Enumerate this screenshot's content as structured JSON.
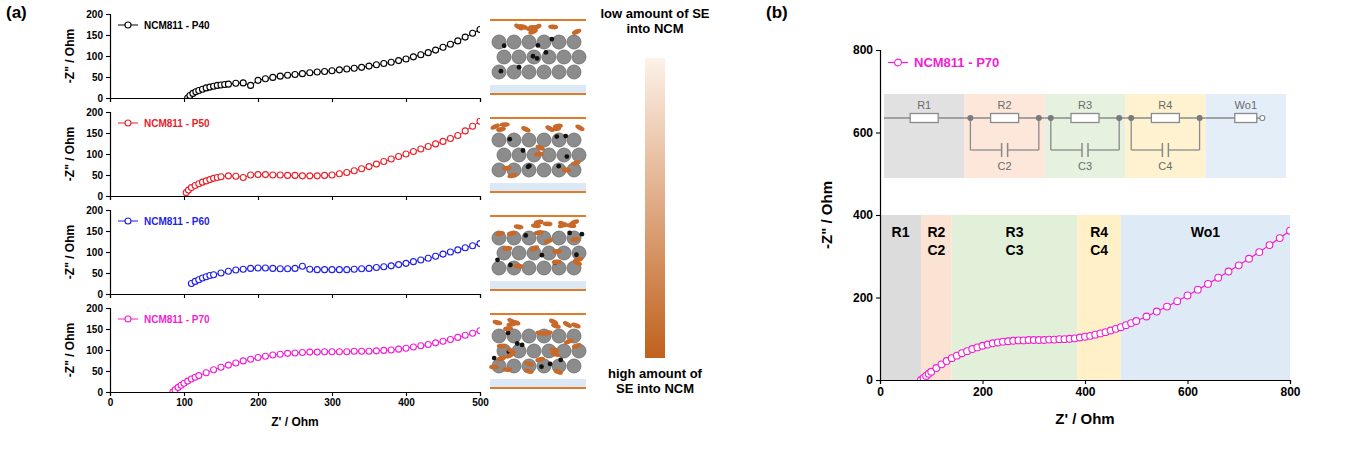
{
  "panel_labels": [
    "(a)",
    "(b)"
  ],
  "gradient_labels": {
    "top": "low amount of SE into NCM",
    "bottom": "high amount of SE into NCM"
  },
  "chart_data": [
    {
      "type": "line",
      "x": [
        105,
        108,
        112,
        116,
        120,
        125,
        130,
        135,
        140,
        145,
        150,
        155,
        160,
        170,
        180,
        190,
        200,
        210,
        220,
        230,
        240,
        250,
        260,
        270,
        280,
        290,
        300,
        310,
        320,
        330,
        340,
        350,
        360,
        370,
        380,
        390,
        400,
        410,
        420,
        430,
        440,
        450,
        460,
        470,
        480,
        490,
        500
      ],
      "series": [
        {
          "name": "NCM811 - P40",
          "color": "#000000",
          "marker": "circle",
          "line_style": "solid",
          "values": [
            0,
            6,
            11,
            15,
            18,
            21,
            24,
            26,
            28,
            30,
            31,
            32,
            33,
            35,
            36,
            30,
            42,
            46,
            49,
            52,
            54,
            56,
            58,
            60,
            62,
            63,
            65,
            67,
            69,
            71,
            73,
            76,
            79,
            82,
            85,
            89,
            93,
            98,
            103,
            108,
            114,
            121,
            128,
            136,
            145,
            154,
            163
          ]
        }
      ],
      "xlim": [
        0,
        500
      ],
      "ylim": [
        0,
        200
      ],
      "xticks": [
        0,
        100,
        200,
        300,
        400,
        500
      ],
      "yticks": [
        0,
        50,
        100,
        150,
        200
      ],
      "y_label": "-Z\" / Ohm",
      "tick_labels": "y",
      "legend": "upper left"
    },
    {
      "type": "line",
      "x": [
        103,
        106,
        110,
        115,
        120,
        125,
        130,
        135,
        140,
        145,
        150,
        160,
        170,
        180,
        190,
        200,
        210,
        220,
        230,
        240,
        250,
        260,
        270,
        280,
        290,
        300,
        310,
        320,
        330,
        340,
        350,
        360,
        370,
        380,
        390,
        400,
        410,
        420,
        430,
        440,
        450,
        460,
        470,
        480,
        490,
        500
      ],
      "series": [
        {
          "name": "NCM811 - P50",
          "color": "#e8202a",
          "marker": "circle",
          "line_style": "solid",
          "values": [
            8,
            14,
            20,
            25,
            29,
            33,
            36,
            39,
            42,
            44,
            46,
            48,
            47,
            44,
            50,
            51,
            51,
            50,
            50,
            49,
            49,
            48,
            48,
            48,
            49,
            50,
            53,
            56,
            60,
            65,
            70,
            76,
            82,
            88,
            94,
            100,
            106,
            112,
            118,
            124,
            130,
            137,
            144,
            155,
            166,
            178
          ]
        }
      ],
      "xlim": [
        0,
        500
      ],
      "ylim": [
        0,
        200
      ],
      "xticks": [
        0,
        100,
        200,
        300,
        400,
        500
      ],
      "yticks": [
        0,
        50,
        100,
        150,
        200
      ],
      "y_label": "-Z\" / Ohm",
      "tick_labels": "y",
      "legend": "upper left"
    },
    {
      "type": "line",
      "x": [
        110,
        115,
        120,
        125,
        130,
        135,
        140,
        150,
        160,
        170,
        180,
        190,
        200,
        210,
        220,
        230,
        240,
        250,
        260,
        270,
        280,
        290,
        300,
        310,
        320,
        330,
        340,
        350,
        360,
        370,
        380,
        390,
        400,
        410,
        420,
        430,
        440,
        450,
        460,
        470,
        480,
        490,
        500
      ],
      "series": [
        {
          "name": "NCM811 - P60",
          "color": "#1f1fe6",
          "marker": "circle",
          "line_style": "solid",
          "values": [
            25,
            30,
            34,
            38,
            41,
            44,
            46,
            50,
            54,
            57,
            59,
            61,
            62,
            62,
            61,
            60,
            60,
            61,
            66,
            59,
            58,
            58,
            58,
            58,
            58,
            59,
            60,
            61,
            63,
            65,
            67,
            70,
            73,
            77,
            81,
            85,
            90,
            95,
            100,
            105,
            110,
            115,
            120
          ]
        }
      ],
      "xlim": [
        0,
        500
      ],
      "ylim": [
        0,
        200
      ],
      "xticks": [
        0,
        100,
        200,
        300,
        400,
        500
      ],
      "yticks": [
        0,
        50,
        100,
        150,
        200
      ],
      "y_label": "-Z\" / Ohm",
      "tick_labels": "y",
      "legend": "upper left"
    },
    {
      "type": "line",
      "x": [
        85,
        88,
        92,
        96,
        100,
        105,
        110,
        115,
        120,
        130,
        140,
        150,
        160,
        170,
        180,
        190,
        200,
        210,
        220,
        230,
        240,
        250,
        260,
        270,
        280,
        290,
        300,
        310,
        320,
        330,
        340,
        350,
        360,
        370,
        380,
        390,
        400,
        410,
        420,
        430,
        440,
        450,
        460,
        470,
        480,
        490,
        500
      ],
      "series": [
        {
          "name": "NCM811 - P70",
          "color": "#f01ed2",
          "marker": "circle",
          "line_style": "solid",
          "values": [
            0,
            5,
            11,
            16,
            21,
            26,
            31,
            35,
            39,
            46,
            53,
            59,
            64,
            69,
            74,
            78,
            82,
            85,
            88,
            90,
            92,
            93,
            94,
            95,
            95,
            96,
            96,
            96,
            96,
            97,
            97,
            97,
            98,
            99,
            100,
            102,
            104,
            107,
            110,
            113,
            117,
            121,
            125,
            130,
            135,
            140,
            146
          ]
        }
      ],
      "xlim": [
        0,
        500
      ],
      "ylim": [
        0,
        200
      ],
      "xticks": [
        0,
        100,
        200,
        300,
        400,
        500
      ],
      "yticks": [
        0,
        50,
        100,
        150,
        200
      ],
      "x_label": "Z' / Ohm",
      "y_label": "-Z\" / Ohm",
      "legend": "upper left"
    },
    {
      "type": "line",
      "x": [
        80,
        85,
        90,
        95,
        100,
        110,
        120,
        130,
        140,
        150,
        160,
        170,
        180,
        190,
        200,
        210,
        220,
        230,
        240,
        250,
        260,
        270,
        280,
        290,
        300,
        310,
        320,
        330,
        340,
        350,
        360,
        370,
        380,
        390,
        400,
        410,
        420,
        430,
        440,
        450,
        460,
        470,
        480,
        490,
        500,
        520,
        540,
        560,
        580,
        600,
        620,
        640,
        660,
        680,
        700,
        720,
        740,
        760,
        780,
        800
      ],
      "series": [
        {
          "name": "NCM811 - P70",
          "color": "#f01ed2",
          "marker": "circle",
          "line_style": "solid",
          "values": [
            0,
            5,
            10,
            15,
            20,
            29,
            38,
            46,
            53,
            59,
            65,
            70,
            75,
            79,
            83,
            86,
            89,
            91,
            93,
            94,
            95,
            96,
            96,
            97,
            97,
            97,
            97,
            98,
            98,
            99,
            99,
            100,
            101,
            103,
            105,
            107,
            110,
            113,
            116,
            120,
            124,
            128,
            133,
            138,
            143,
            154,
            166,
            178,
            191,
            205,
            219,
            233,
            248,
            263,
            278,
            294,
            310,
            327,
            344,
            362
          ]
        }
      ],
      "xlim": [
        0,
        800
      ],
      "ylim": [
        0,
        800
      ],
      "xticks": [
        0,
        200,
        400,
        600,
        800
      ],
      "yticks": [
        0,
        200,
        400,
        600,
        800
      ],
      "x_label": "Z' / Ohm",
      "y_label": "-Z\" / Ohm",
      "legend": "upper left",
      "bands": [
        {
          "lines": [
            "R1"
          ],
          "x": [
            0,
            80
          ],
          "y": [
            0,
            400
          ],
          "color": "#dcdcdc"
        },
        {
          "lines": [
            "R2",
            "C2"
          ],
          "x": [
            80,
            140
          ],
          "y": [
            0,
            400
          ],
          "color": "#fbe3d3"
        },
        {
          "lines": [
            "R3",
            "C3"
          ],
          "x": [
            140,
            385
          ],
          "y": [
            0,
            400
          ],
          "color": "#e2efd9"
        },
        {
          "lines": [
            "R4",
            "C4"
          ],
          "x": [
            385,
            470
          ],
          "y": [
            0,
            400
          ],
          "color": "#fff0c8"
        },
        {
          "lines": [
            "Wo1"
          ],
          "x": [
            470,
            800
          ],
          "y": [
            0,
            400
          ],
          "color": "#deebf7"
        }
      ],
      "circuit": [
        {
          "kind": "R",
          "labels": [
            "R1"
          ]
        },
        {
          "kind": "RC",
          "labels": [
            "R2",
            "C2"
          ]
        },
        {
          "kind": "RC",
          "labels": [
            "R3",
            "C3"
          ]
        },
        {
          "kind": "RC",
          "labels": [
            "R4",
            "C4"
          ]
        },
        {
          "kind": "W",
          "labels": [
            "Wo1"
          ]
        }
      ]
    }
  ]
}
